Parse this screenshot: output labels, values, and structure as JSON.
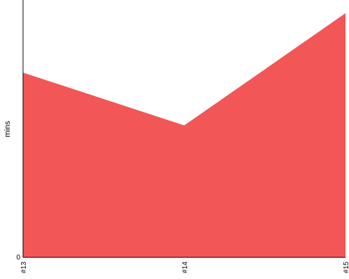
{
  "chart_data": {
    "type": "area",
    "categories": [
      "#13",
      "#14",
      "#15"
    ],
    "series": [
      {
        "values": [
          28,
          20,
          37
        ],
        "color": "#f25656"
      }
    ],
    "ylabel": "mins",
    "ylim": [
      0,
      39
    ],
    "y_ticks": [
      "0"
    ],
    "grid": false,
    "legend": "none"
  }
}
